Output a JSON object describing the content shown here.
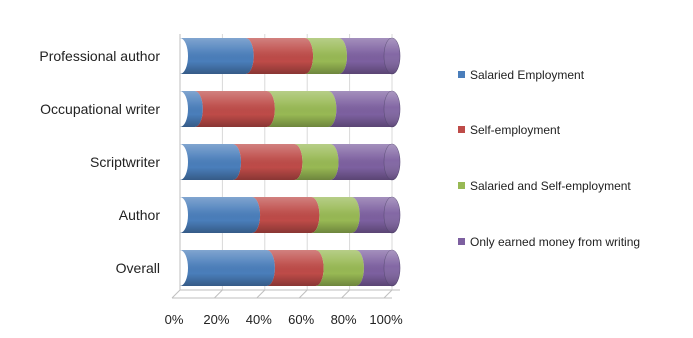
{
  "chart_data": {
    "type": "bar",
    "orientation": "horizontal",
    "stacked": "percent",
    "categories": [
      "Professional author",
      "Occupational writer",
      "Scriptwriter",
      "Author",
      "Overall"
    ],
    "series": [
      {
        "name": "Salaried Employment",
        "color": "#4a7ebb",
        "values": [
          31,
          7,
          25,
          34,
          41
        ]
      },
      {
        "name": "Self-employment",
        "color": "#be4b48",
        "values": [
          28,
          34,
          29,
          28,
          23
        ]
      },
      {
        "name": "Salaried and Self-employment",
        "color": "#98b954",
        "values": [
          16,
          29,
          17,
          19,
          19
        ]
      },
      {
        "name": "Only earned money from writing",
        "color": "#7d60a0",
        "values": [
          25,
          30,
          29,
          19,
          17
        ]
      }
    ],
    "x_ticks": [
      "0%",
      "20%",
      "40%",
      "60%",
      "80%",
      "100%"
    ],
    "xlim": [
      0,
      100
    ],
    "grid": true,
    "legend_position": "right",
    "title": "",
    "xlabel": "",
    "ylabel": ""
  }
}
